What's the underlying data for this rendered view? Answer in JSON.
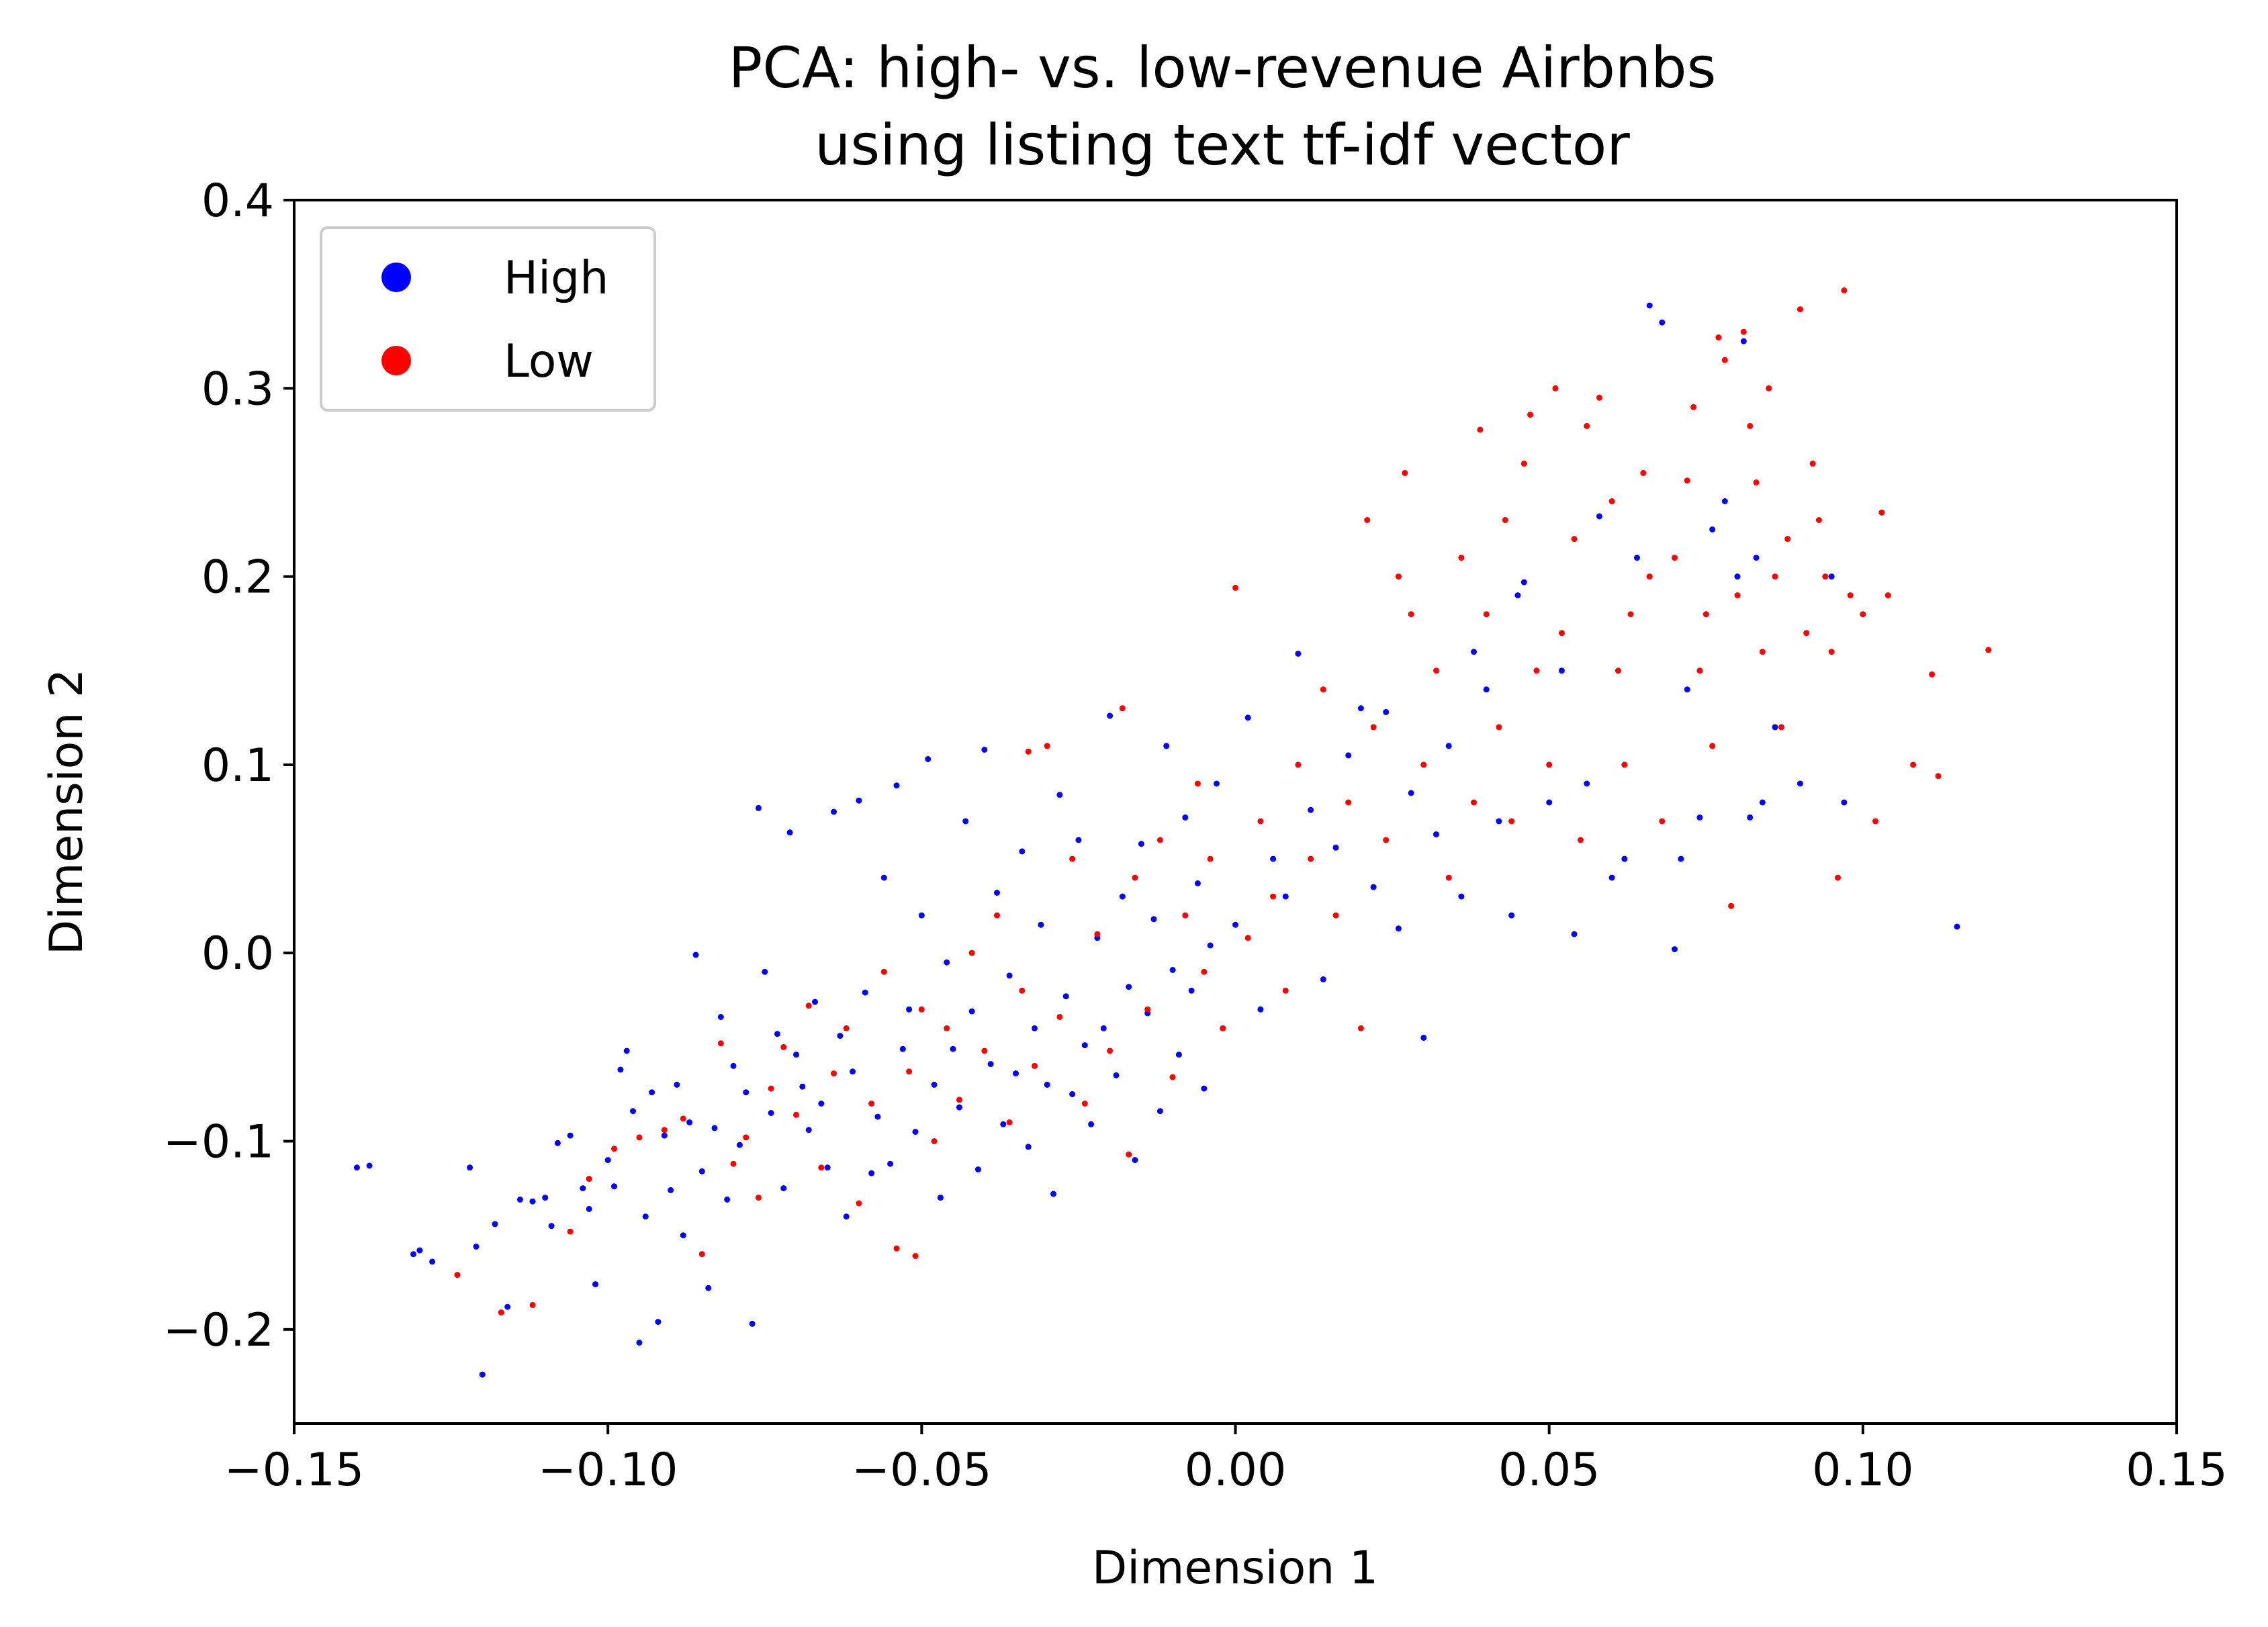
{
  "chart_data": {
    "type": "scatter",
    "title": "PCA: high- vs. low-revenue Airbnbs\nusing listing text tf-idf vector",
    "xlabel": "Dimension 1",
    "ylabel": "Dimension 2",
    "xlim": [
      -0.15,
      0.15
    ],
    "ylim": [
      -0.25,
      0.4
    ],
    "xticks": [
      -0.15,
      -0.1,
      -0.05,
      0.0,
      0.05,
      0.1,
      0.15
    ],
    "xtick_labels": [
      "−0.15",
      "−0.10",
      "−0.05",
      "0.00",
      "0.05",
      "0.10",
      "0.15"
    ],
    "yticks": [
      -0.2,
      -0.1,
      0.0,
      0.1,
      0.2,
      0.3,
      0.4
    ],
    "ytick_labels": [
      "−0.2",
      "−0.1",
      "0.0",
      "0.1",
      "0.2",
      "0.3",
      "0.4"
    ],
    "grid": false,
    "legend_position": "top-left",
    "series": [
      {
        "name": "High",
        "color": "#0000ff",
        "points": [
          [
            -0.14,
            -0.114
          ],
          [
            -0.138,
            -0.113
          ],
          [
            -0.131,
            -0.16
          ],
          [
            -0.13,
            -0.158
          ],
          [
            -0.128,
            -0.164
          ],
          [
            -0.122,
            -0.114
          ],
          [
            -0.121,
            -0.156
          ],
          [
            -0.12,
            -0.224
          ],
          [
            -0.118,
            -0.144
          ],
          [
            -0.116,
            -0.188
          ],
          [
            -0.114,
            -0.131
          ],
          [
            -0.112,
            -0.132
          ],
          [
            -0.11,
            -0.13
          ],
          [
            -0.109,
            -0.145
          ],
          [
            -0.108,
            -0.101
          ],
          [
            -0.106,
            -0.097
          ],
          [
            -0.104,
            -0.125
          ],
          [
            -0.103,
            -0.136
          ],
          [
            -0.102,
            -0.176
          ],
          [
            -0.1,
            -0.11
          ],
          [
            -0.099,
            -0.124
          ],
          [
            -0.098,
            -0.062
          ],
          [
            -0.097,
            -0.052
          ],
          [
            -0.096,
            -0.084
          ],
          [
            -0.095,
            -0.207
          ],
          [
            -0.094,
            -0.14
          ],
          [
            -0.093,
            -0.074
          ],
          [
            -0.092,
            -0.196
          ],
          [
            -0.091,
            -0.097
          ],
          [
            -0.09,
            -0.126
          ],
          [
            -0.089,
            -0.07
          ],
          [
            -0.088,
            -0.15
          ],
          [
            -0.087,
            -0.09
          ],
          [
            -0.086,
            -0.001
          ],
          [
            -0.085,
            -0.116
          ],
          [
            -0.084,
            -0.178
          ],
          [
            -0.083,
            -0.093
          ],
          [
            -0.082,
            -0.034
          ],
          [
            -0.081,
            -0.131
          ],
          [
            -0.08,
            -0.06
          ],
          [
            -0.079,
            -0.102
          ],
          [
            -0.078,
            -0.074
          ],
          [
            -0.077,
            -0.197
          ],
          [
            -0.076,
            0.077
          ],
          [
            -0.075,
            -0.01
          ],
          [
            -0.074,
            -0.085
          ],
          [
            -0.073,
            -0.043
          ],
          [
            -0.072,
            -0.125
          ],
          [
            -0.071,
            0.064
          ],
          [
            -0.07,
            -0.054
          ],
          [
            -0.069,
            -0.071
          ],
          [
            -0.068,
            -0.094
          ],
          [
            -0.067,
            -0.026
          ],
          [
            -0.066,
            -0.08
          ],
          [
            -0.065,
            -0.114
          ],
          [
            -0.064,
            0.075
          ],
          [
            -0.063,
            -0.044
          ],
          [
            -0.062,
            -0.14
          ],
          [
            -0.061,
            -0.063
          ],
          [
            -0.06,
            0.081
          ],
          [
            -0.059,
            -0.021
          ],
          [
            -0.058,
            -0.117
          ],
          [
            -0.057,
            -0.087
          ],
          [
            -0.056,
            0.04
          ],
          [
            -0.055,
            -0.112
          ],
          [
            -0.054,
            0.089
          ],
          [
            -0.053,
            -0.051
          ],
          [
            -0.052,
            -0.03
          ],
          [
            -0.051,
            -0.095
          ],
          [
            -0.05,
            0.02
          ],
          [
            -0.049,
            0.103
          ],
          [
            -0.048,
            -0.07
          ],
          [
            -0.047,
            -0.13
          ],
          [
            -0.046,
            -0.005
          ],
          [
            -0.045,
            -0.051
          ],
          [
            -0.044,
            -0.082
          ],
          [
            -0.043,
            0.07
          ],
          [
            -0.042,
            -0.031
          ],
          [
            -0.041,
            -0.115
          ],
          [
            -0.04,
            0.108
          ],
          [
            -0.039,
            -0.059
          ],
          [
            -0.038,
            0.032
          ],
          [
            -0.037,
            -0.091
          ],
          [
            -0.036,
            -0.012
          ],
          [
            -0.035,
            -0.064
          ],
          [
            -0.034,
            0.054
          ],
          [
            -0.033,
            -0.103
          ],
          [
            -0.032,
            -0.04
          ],
          [
            -0.031,
            0.015
          ],
          [
            -0.03,
            -0.07
          ],
          [
            -0.029,
            -0.128
          ],
          [
            -0.028,
            0.084
          ],
          [
            -0.027,
            -0.023
          ],
          [
            -0.026,
            -0.075
          ],
          [
            -0.025,
            0.06
          ],
          [
            -0.024,
            -0.049
          ],
          [
            -0.023,
            -0.091
          ],
          [
            -0.022,
            0.008
          ],
          [
            -0.021,
            -0.04
          ],
          [
            -0.02,
            0.126
          ],
          [
            -0.019,
            -0.065
          ],
          [
            -0.018,
            0.03
          ],
          [
            -0.017,
            -0.018
          ],
          [
            -0.016,
            -0.11
          ],
          [
            -0.015,
            0.058
          ],
          [
            -0.014,
            -0.032
          ],
          [
            -0.013,
            0.018
          ],
          [
            -0.012,
            -0.084
          ],
          [
            -0.011,
            0.11
          ],
          [
            -0.01,
            -0.009
          ],
          [
            -0.009,
            -0.054
          ],
          [
            -0.008,
            0.072
          ],
          [
            -0.007,
            -0.02
          ],
          [
            -0.006,
            0.037
          ],
          [
            -0.005,
            -0.072
          ],
          [
            -0.004,
            0.004
          ],
          [
            -0.003,
            0.09
          ],
          [
            -0.002,
            -0.04
          ],
          [
            0.0,
            0.015
          ],
          [
            0.002,
            0.125
          ],
          [
            0.004,
            -0.03
          ],
          [
            0.006,
            0.05
          ],
          [
            0.008,
            0.03
          ],
          [
            0.01,
            0.159
          ],
          [
            0.012,
            0.076
          ],
          [
            0.014,
            -0.014
          ],
          [
            0.016,
            0.056
          ],
          [
            0.018,
            0.105
          ],
          [
            0.02,
            0.13
          ],
          [
            0.022,
            0.035
          ],
          [
            0.024,
            0.128
          ],
          [
            0.026,
            0.013
          ],
          [
            0.028,
            0.085
          ],
          [
            0.03,
            -0.045
          ],
          [
            0.032,
            0.063
          ],
          [
            0.034,
            0.11
          ],
          [
            0.036,
            0.03
          ],
          [
            0.038,
            0.16
          ],
          [
            0.04,
            0.14
          ],
          [
            0.042,
            0.07
          ],
          [
            0.044,
            0.02
          ],
          [
            0.045,
            0.19
          ],
          [
            0.046,
            0.197
          ],
          [
            0.05,
            0.08
          ],
          [
            0.052,
            0.15
          ],
          [
            0.054,
            0.01
          ],
          [
            0.056,
            0.09
          ],
          [
            0.058,
            0.232
          ],
          [
            0.06,
            0.04
          ],
          [
            0.062,
            0.05
          ],
          [
            0.064,
            0.21
          ],
          [
            0.066,
            0.344
          ],
          [
            0.068,
            0.335
          ],
          [
            0.07,
            0.002
          ],
          [
            0.071,
            0.05
          ],
          [
            0.072,
            0.14
          ],
          [
            0.074,
            0.072
          ],
          [
            0.076,
            0.225
          ],
          [
            0.078,
            0.24
          ],
          [
            0.08,
            0.2
          ],
          [
            0.081,
            0.325
          ],
          [
            0.082,
            0.072
          ],
          [
            0.083,
            0.21
          ],
          [
            0.084,
            0.08
          ],
          [
            0.086,
            0.12
          ],
          [
            0.09,
            0.09
          ],
          [
            0.095,
            0.2
          ],
          [
            0.097,
            0.08
          ],
          [
            0.115,
            0.014
          ]
        ]
      },
      {
        "name": "Low",
        "color": "#ff0000",
        "points": [
          [
            -0.124,
            -0.171
          ],
          [
            -0.117,
            -0.191
          ],
          [
            -0.112,
            -0.187
          ],
          [
            -0.106,
            -0.148
          ],
          [
            -0.103,
            -0.12
          ],
          [
            -0.099,
            -0.104
          ],
          [
            -0.095,
            -0.098
          ],
          [
            -0.091,
            -0.094
          ],
          [
            -0.088,
            -0.088
          ],
          [
            -0.085,
            -0.16
          ],
          [
            -0.082,
            -0.048
          ],
          [
            -0.08,
            -0.112
          ],
          [
            -0.078,
            -0.098
          ],
          [
            -0.076,
            -0.13
          ],
          [
            -0.074,
            -0.072
          ],
          [
            -0.072,
            -0.05
          ],
          [
            -0.07,
            -0.086
          ],
          [
            -0.068,
            -0.028
          ],
          [
            -0.066,
            -0.114
          ],
          [
            -0.064,
            -0.064
          ],
          [
            -0.062,
            -0.04
          ],
          [
            -0.06,
            -0.133
          ],
          [
            -0.058,
            -0.08
          ],
          [
            -0.056,
            -0.01
          ],
          [
            -0.054,
            -0.157
          ],
          [
            -0.052,
            -0.063
          ],
          [
            -0.051,
            -0.161
          ],
          [
            -0.05,
            -0.03
          ],
          [
            -0.048,
            -0.1
          ],
          [
            -0.046,
            -0.04
          ],
          [
            -0.044,
            -0.078
          ],
          [
            -0.042,
            0.0
          ],
          [
            -0.04,
            -0.052
          ],
          [
            -0.038,
            0.02
          ],
          [
            -0.036,
            -0.09
          ],
          [
            -0.034,
            -0.02
          ],
          [
            -0.033,
            0.107
          ],
          [
            -0.032,
            -0.06
          ],
          [
            -0.03,
            0.11
          ],
          [
            -0.028,
            -0.034
          ],
          [
            -0.026,
            0.05
          ],
          [
            -0.024,
            -0.08
          ],
          [
            -0.022,
            0.01
          ],
          [
            -0.02,
            -0.052
          ],
          [
            -0.018,
            0.13
          ],
          [
            -0.017,
            -0.107
          ],
          [
            -0.016,
            0.04
          ],
          [
            -0.014,
            -0.03
          ],
          [
            -0.012,
            0.06
          ],
          [
            -0.01,
            -0.066
          ],
          [
            -0.008,
            0.02
          ],
          [
            -0.006,
            0.09
          ],
          [
            -0.005,
            -0.01
          ],
          [
            -0.004,
            0.05
          ],
          [
            -0.002,
            -0.04
          ],
          [
            0.0,
            0.194
          ],
          [
            0.002,
            0.008
          ],
          [
            0.004,
            0.07
          ],
          [
            0.006,
            0.03
          ],
          [
            0.008,
            -0.02
          ],
          [
            0.01,
            0.1
          ],
          [
            0.012,
            0.05
          ],
          [
            0.014,
            0.14
          ],
          [
            0.016,
            0.02
          ],
          [
            0.018,
            0.08
          ],
          [
            0.02,
            -0.04
          ],
          [
            0.021,
            0.23
          ],
          [
            0.022,
            0.12
          ],
          [
            0.024,
            0.06
          ],
          [
            0.026,
            0.2
          ],
          [
            0.027,
            0.255
          ],
          [
            0.028,
            0.18
          ],
          [
            0.03,
            0.1
          ],
          [
            0.032,
            0.15
          ],
          [
            0.034,
            0.04
          ],
          [
            0.036,
            0.21
          ],
          [
            0.038,
            0.08
          ],
          [
            0.039,
            0.278
          ],
          [
            0.04,
            0.18
          ],
          [
            0.042,
            0.12
          ],
          [
            0.043,
            0.23
          ],
          [
            0.044,
            0.07
          ],
          [
            0.046,
            0.26
          ],
          [
            0.047,
            0.286
          ],
          [
            0.048,
            0.15
          ],
          [
            0.05,
            0.1
          ],
          [
            0.051,
            0.3
          ],
          [
            0.052,
            0.17
          ],
          [
            0.054,
            0.22
          ],
          [
            0.055,
            0.06
          ],
          [
            0.056,
            0.28
          ],
          [
            0.058,
            0.295
          ],
          [
            0.06,
            0.24
          ],
          [
            0.061,
            0.15
          ],
          [
            0.062,
            0.1
          ],
          [
            0.063,
            0.18
          ],
          [
            0.065,
            0.255
          ],
          [
            0.066,
            0.2
          ],
          [
            0.068,
            0.07
          ],
          [
            0.07,
            0.21
          ],
          [
            0.072,
            0.251
          ],
          [
            0.073,
            0.29
          ],
          [
            0.074,
            0.15
          ],
          [
            0.075,
            0.18
          ],
          [
            0.076,
            0.11
          ],
          [
            0.077,
            0.327
          ],
          [
            0.078,
            0.315
          ],
          [
            0.079,
            0.025
          ],
          [
            0.08,
            0.19
          ],
          [
            0.081,
            0.33
          ],
          [
            0.082,
            0.28
          ],
          [
            0.083,
            0.25
          ],
          [
            0.084,
            0.16
          ],
          [
            0.085,
            0.3
          ],
          [
            0.086,
            0.2
          ],
          [
            0.087,
            0.12
          ],
          [
            0.088,
            0.22
          ],
          [
            0.09,
            0.342
          ],
          [
            0.091,
            0.17
          ],
          [
            0.092,
            0.26
          ],
          [
            0.093,
            0.23
          ],
          [
            0.094,
            0.2
          ],
          [
            0.095,
            0.16
          ],
          [
            0.096,
            0.04
          ],
          [
            0.097,
            0.352
          ],
          [
            0.098,
            0.19
          ],
          [
            0.1,
            0.18
          ],
          [
            0.102,
            0.07
          ],
          [
            0.103,
            0.234
          ],
          [
            0.104,
            0.19
          ],
          [
            0.108,
            0.1
          ],
          [
            0.111,
            0.148
          ],
          [
            0.112,
            0.094
          ],
          [
            0.12,
            0.161
          ]
        ]
      }
    ]
  }
}
